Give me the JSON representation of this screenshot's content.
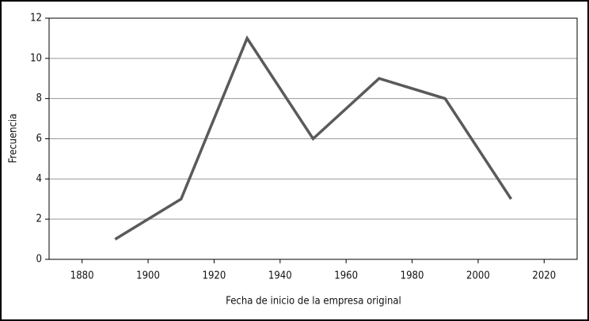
{
  "chart_data": {
    "type": "line",
    "x": [
      1890,
      1910,
      1930,
      1950,
      1970,
      1990,
      2010
    ],
    "series": [
      {
        "name": "Frecuencia",
        "color": "#5a5a5a",
        "values": [
          1,
          3,
          11,
          6,
          9,
          8,
          3
        ]
      }
    ],
    "xlabel": "Fecha de inicio de la empresa original",
    "ylabel": "Frecuencia",
    "xlim": [
      1870,
      2030
    ],
    "xticks": [
      1880,
      1900,
      1920,
      1940,
      1960,
      1980,
      2000,
      2020
    ],
    "ylim": [
      0,
      12
    ],
    "yticks": [
      0,
      2,
      4,
      6,
      8,
      10,
      12
    ],
    "grid": true
  }
}
